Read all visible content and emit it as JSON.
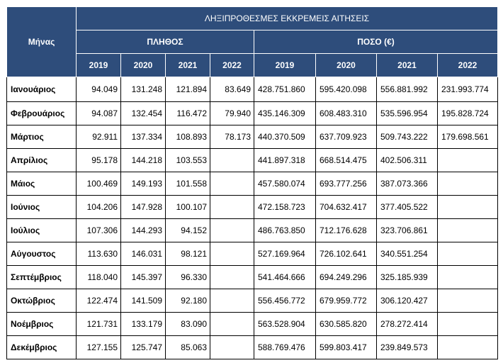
{
  "header": {
    "month_label": "Μήνας",
    "title": "ΛΗΞΙΠΡΟΘΕΣΜΕΣ ΕΚΚΡΕΜΕΙΣ ΑΙΤΗΣΕΙΣ",
    "group_count": "ΠΛΗΘΟΣ",
    "group_amount": "ΠΟΣΟ (€)",
    "years": [
      "2019",
      "2020",
      "2021",
      "2022"
    ]
  },
  "rows": [
    {
      "month": "Ιανουάριος",
      "count": [
        "94.049",
        "131.248",
        "121.894",
        "83.649"
      ],
      "amount": [
        "428.751.860",
        "595.420.098",
        "556.881.992",
        "231.993.774"
      ]
    },
    {
      "month": "Φεβρουάριος",
      "count": [
        "94.087",
        "132.454",
        "116.472",
        "79.940"
      ],
      "amount": [
        "435.146.309",
        "608.483.310",
        "535.596.954",
        "195.828.724"
      ]
    },
    {
      "month": "Μάρτιος",
      "count": [
        "92.911",
        "137.334",
        "108.893",
        "78.173"
      ],
      "amount": [
        "440.370.509",
        "637.709.923",
        "509.743.222",
        "179.698.561"
      ]
    },
    {
      "month": "Απρίλιος",
      "count": [
        "95.178",
        "144.218",
        "103.553",
        ""
      ],
      "amount": [
        "441.897.318",
        "668.514.475",
        "402.506.311",
        ""
      ]
    },
    {
      "month": "Μάιος",
      "count": [
        "100.469",
        "149.193",
        "101.558",
        ""
      ],
      "amount": [
        "457.580.074",
        "693.777.256",
        "387.073.366",
        ""
      ]
    },
    {
      "month": "Ιούνιος",
      "count": [
        "104.206",
        "147.928",
        "100.107",
        ""
      ],
      "amount": [
        "472.158.723",
        "704.632.417",
        "377.405.522",
        ""
      ]
    },
    {
      "month": "Ιούλιος",
      "count": [
        "107.306",
        "144.293",
        "94.152",
        ""
      ],
      "amount": [
        "486.763.850",
        "712.176.628",
        "323.706.861",
        ""
      ]
    },
    {
      "month": "Αύγουστος",
      "count": [
        "113.630",
        "146.031",
        "98.121",
        ""
      ],
      "amount": [
        "527.169.964",
        "726.102.641",
        "340.551.254",
        ""
      ]
    },
    {
      "month": "Σεπτέμβριος",
      "count": [
        "118.040",
        "145.397",
        "96.330",
        ""
      ],
      "amount": [
        "541.464.666",
        "694.249.296",
        "325.185.939",
        ""
      ]
    },
    {
      "month": "Οκτώβριος",
      "count": [
        "122.474",
        "141.509",
        "92.180",
        ""
      ],
      "amount": [
        "556.456.772",
        "679.959.772",
        "306.120.427",
        ""
      ]
    },
    {
      "month": "Νοέμβριος",
      "count": [
        "121.731",
        "133.179",
        "83.090",
        ""
      ],
      "amount": [
        "563.528.904",
        "630.585.820",
        "278.272.414",
        ""
      ]
    },
    {
      "month": "Δεκέμβριος",
      "count": [
        "127.155",
        "125.747",
        "85.063",
        ""
      ],
      "amount": [
        "588.769.476",
        "599.803.417",
        "239.849.573",
        ""
      ]
    }
  ]
}
